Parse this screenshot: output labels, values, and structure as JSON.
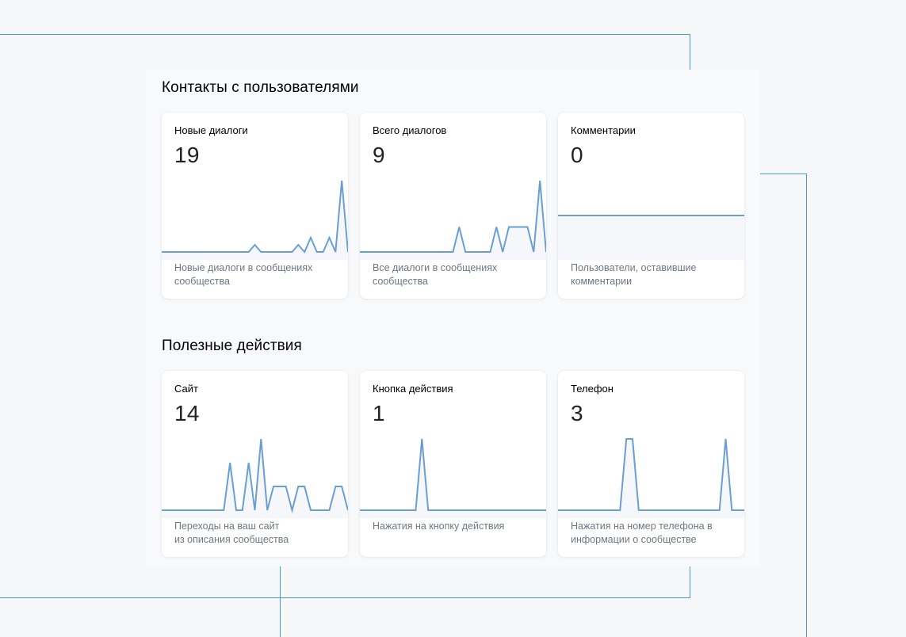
{
  "sections": [
    {
      "title": "Контакты с пользователями",
      "cards": [
        {
          "title": "Новые диалоги",
          "value": "19",
          "description": "Новые диалоги в сообщениях\nсообщества",
          "series": [
            0,
            0,
            0,
            0,
            0,
            0,
            0,
            0,
            0,
            0,
            0,
            0,
            0,
            0,
            0,
            1,
            0,
            0,
            0,
            0,
            0,
            0,
            1,
            0,
            2,
            0,
            0,
            2,
            0,
            10,
            0
          ],
          "ymax": 10
        },
        {
          "title": "Всего диалогов",
          "value": "9",
          "description": "Все диалоги в сообщениях\nсообщества",
          "series": [
            0,
            0,
            0,
            0,
            0,
            0,
            0,
            0,
            0,
            0,
            0,
            0,
            0,
            0,
            0,
            0,
            3.5,
            0,
            0,
            0,
            0,
            0,
            3.5,
            0,
            3.5,
            3.5,
            3.5,
            3.5,
            0,
            10,
            0
          ],
          "ymax": 10
        },
        {
          "title": "Комментарии",
          "value": "0",
          "description": "Пользователи, оставившие\nкомментарии",
          "series": [
            0,
            0,
            0,
            0,
            0,
            0,
            0,
            0,
            0,
            0,
            0,
            0,
            0,
            0,
            0,
            0,
            0,
            0,
            0,
            0,
            0,
            0,
            0,
            0,
            0,
            0,
            0,
            0,
            0,
            0,
            0
          ],
          "ymax": 0,
          "flat": true
        }
      ]
    },
    {
      "title": "Полезные действия",
      "cards": [
        {
          "title": "Сайт",
          "value": "14",
          "description": "Переходы на ваш сайт\nиз описания сообщества",
          "series": [
            0,
            0,
            0,
            0,
            0,
            0,
            0,
            0,
            0,
            0,
            0,
            2,
            0,
            0,
            2,
            0,
            3,
            0,
            1,
            1,
            1,
            0,
            1,
            1,
            0,
            0,
            0,
            0,
            1,
            1,
            0
          ],
          "ymax": 3
        },
        {
          "title": "Кнопка действия",
          "value": "1",
          "description": "Нажатия на кнопку действия",
          "series": [
            0,
            0,
            0,
            0,
            0,
            0,
            0,
            0,
            0,
            0,
            1,
            0,
            0,
            0,
            0,
            0,
            0,
            0,
            0,
            0,
            0,
            0,
            0,
            0,
            0,
            0,
            0,
            0,
            0,
            0,
            0
          ],
          "ymax": 1
        },
        {
          "title": "Телефон",
          "value": "3",
          "description": "Нажатия на номер телефона в\nинформации о сообществе",
          "series": [
            0,
            0,
            0,
            0,
            0,
            0,
            0,
            0,
            0,
            0,
            0,
            1,
            1,
            0,
            0,
            0,
            0,
            0,
            0,
            0,
            0,
            0,
            0,
            0,
            0,
            0,
            0,
            1,
            0,
            0,
            0
          ],
          "ymax": 1
        }
      ]
    }
  ],
  "colors": {
    "line": "#6a9fd4",
    "area_fill": "#f6f7fa",
    "decorative_lines": "#4a9cc4"
  }
}
